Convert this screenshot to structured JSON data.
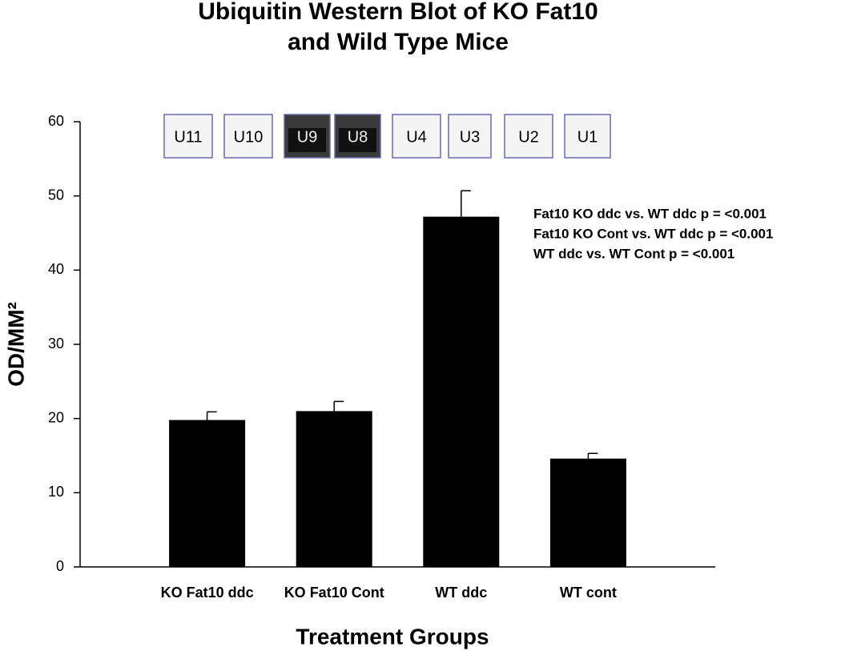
{
  "chart_data": {
    "type": "bar",
    "title": [
      "Ubiquitin Western Blot of KO Fat10",
      "and Wild Type Mice"
    ],
    "y_label": "OD/MM²",
    "x_label": "Treatment Groups",
    "categories": [
      "KO Fat10 ddc",
      "KO Fat10 Cont",
      "WT ddc",
      "WT cont"
    ],
    "values": [
      19.8,
      21,
      47.2,
      14.6
    ],
    "errors": [
      1.1,
      1.3,
      3.5,
      0.7
    ],
    "color": "#000000",
    "ylim": [
      0,
      60
    ],
    "yticks": [
      0,
      10,
      20,
      30,
      40,
      50,
      60
    ],
    "annotations": [
      "Fat10 KO ddc vs. WT ddc p = <0.001",
      "Fat10 KO Cont vs. WT ddc p = <0.001",
      "WT ddc vs. WT Cont p = <0.001"
    ],
    "blot_labels": [
      "U11",
      "U10",
      "U9",
      "U8",
      "U4",
      "U3",
      "U2",
      "U1"
    ]
  }
}
